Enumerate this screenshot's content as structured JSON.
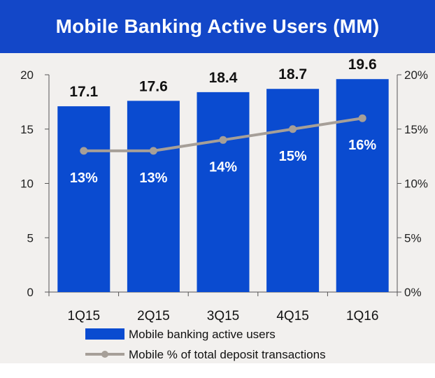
{
  "title": "Mobile Banking Active Users (MM)",
  "colors": {
    "title_bg": "#1347c8",
    "bar": "#0a4bd0",
    "line": "#a69f98",
    "background": "#f2f0ee"
  },
  "chart_data": {
    "type": "bar",
    "title": "Mobile Banking Active Users (MM)",
    "categories": [
      "1Q15",
      "2Q15",
      "3Q15",
      "4Q15",
      "1Q16"
    ],
    "series": [
      {
        "name": "Mobile banking active users",
        "type": "bar",
        "axis": "left",
        "values": [
          17.1,
          17.6,
          18.4,
          18.7,
          19.6
        ],
        "labels": [
          "17.1",
          "17.6",
          "18.4",
          "18.7",
          "19.6"
        ]
      },
      {
        "name": "Mobile % of total deposit transactions",
        "type": "line",
        "axis": "right",
        "values": [
          13,
          13,
          14,
          15,
          16
        ],
        "labels": [
          "13%",
          "13%",
          "14%",
          "15%",
          "16%"
        ]
      }
    ],
    "y_left": {
      "ylim": [
        0,
        20
      ],
      "ticks": [
        0,
        5,
        10,
        15,
        20
      ],
      "tick_labels": [
        "0",
        "5",
        "10",
        "15",
        "20"
      ]
    },
    "y_right": {
      "ylim": [
        0,
        20
      ],
      "ticks": [
        0,
        5,
        10,
        15,
        20
      ],
      "tick_labels": [
        "0%",
        "5%",
        "10%",
        "15%",
        "20%"
      ]
    },
    "grid": false,
    "legend_position": "bottom"
  }
}
